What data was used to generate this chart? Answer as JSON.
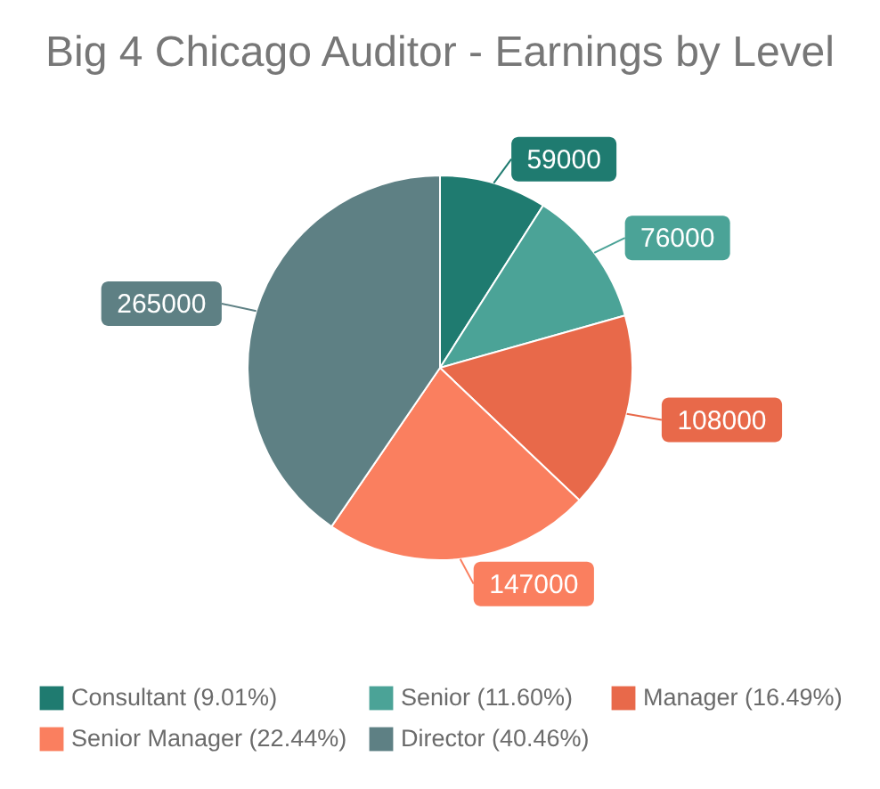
{
  "chart_data": {
    "type": "pie",
    "title": "Big 4 Chicago Auditor - Earnings by Level",
    "categories": [
      "Consultant (9.01%)",
      "Senior (11.60%)",
      "Manager (16.49%)",
      "Senior Manager (22.44%)",
      "Director (40.46%)"
    ],
    "values": [
      59000,
      76000,
      108000,
      147000,
      265000
    ],
    "colors": [
      "#1f7b70",
      "#4ba397",
      "#e8694a",
      "#fa7f5f",
      "#5e8084"
    ],
    "data_labels": true,
    "legend": "bottom"
  }
}
